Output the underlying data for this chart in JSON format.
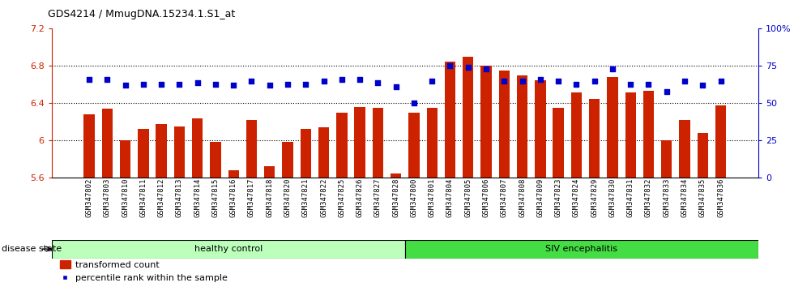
{
  "title": "GDS4214 / MmugDNA.15234.1.S1_at",
  "samples": [
    "GSM347802",
    "GSM347803",
    "GSM347810",
    "GSM347811",
    "GSM347812",
    "GSM347813",
    "GSM347814",
    "GSM347815",
    "GSM347816",
    "GSM347817",
    "GSM347818",
    "GSM347820",
    "GSM347821",
    "GSM347822",
    "GSM347825",
    "GSM347826",
    "GSM347827",
    "GSM347828",
    "GSM347800",
    "GSM347801",
    "GSM347804",
    "GSM347805",
    "GSM347806",
    "GSM347807",
    "GSM347808",
    "GSM347809",
    "GSM347823",
    "GSM347824",
    "GSM347829",
    "GSM347830",
    "GSM347831",
    "GSM347832",
    "GSM347833",
    "GSM347834",
    "GSM347835",
    "GSM347836"
  ],
  "bar_values": [
    6.28,
    6.34,
    6.0,
    6.13,
    6.18,
    6.15,
    6.24,
    5.99,
    5.68,
    6.22,
    5.73,
    5.99,
    6.13,
    6.14,
    6.3,
    6.36,
    6.35,
    5.65,
    6.3,
    6.35,
    6.85,
    6.9,
    6.8,
    6.75,
    6.7,
    6.65,
    6.35,
    6.52,
    6.45,
    6.68,
    6.52,
    6.53,
    6.0,
    6.22,
    6.08,
    6.38
  ],
  "percentile_values": [
    66,
    66,
    62,
    63,
    63,
    63,
    64,
    63,
    62,
    65,
    62,
    63,
    63,
    65,
    66,
    66,
    64,
    61,
    50,
    65,
    75,
    74,
    73,
    65,
    65,
    66,
    65,
    63,
    65,
    73,
    63,
    63,
    58,
    65,
    62,
    65
  ],
  "healthy_count": 18,
  "siv_count": 18,
  "ylim_left": [
    5.6,
    7.2
  ],
  "ylim_right": [
    0,
    100
  ],
  "yticks_left": [
    5.6,
    6.0,
    6.4,
    6.8,
    7.2
  ],
  "yticks_right": [
    0,
    25,
    50,
    75,
    100
  ],
  "ytick_labels_left": [
    "5.6",
    "6",
    "6.4",
    "6.8",
    "7.2"
  ],
  "ytick_labels_right": [
    "0",
    "25",
    "50",
    "75",
    "100%"
  ],
  "bar_color": "#cc2200",
  "dot_color": "#0000cc",
  "healthy_color": "#bbffbb",
  "siv_color": "#44dd44",
  "healthy_label": "healthy control",
  "siv_label": "SIV encephalitis",
  "disease_state_label": "disease state",
  "legend_bar_label": "transformed count",
  "legend_dot_label": "percentile rank within the sample"
}
